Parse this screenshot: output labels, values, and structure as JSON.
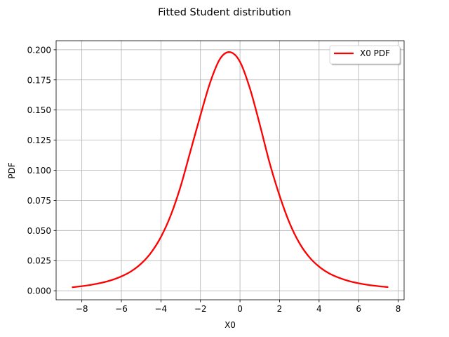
{
  "chart_data": {
    "type": "line",
    "title": "Fitted Student distribution",
    "xlabel": "X0",
    "ylabel": "PDF",
    "xlim": [
      -9.3,
      8.3
    ],
    "ylim": [
      -0.0075,
      0.2075
    ],
    "xticks": [
      -8,
      -6,
      -4,
      -2,
      0,
      2,
      4,
      6,
      8
    ],
    "xtick_labels": [
      "−8",
      "−6",
      "−4",
      "−2",
      "0",
      "2",
      "4",
      "6",
      "8"
    ],
    "yticks": [
      0.0,
      0.025,
      0.05,
      0.075,
      0.1,
      0.125,
      0.15,
      0.175,
      0.2
    ],
    "ytick_labels": [
      "0.000",
      "0.025",
      "0.050",
      "0.075",
      "0.100",
      "0.125",
      "0.150",
      "0.175",
      "0.200"
    ],
    "grid": true,
    "legend_position": "top-right",
    "series": [
      {
        "name": "X0 PDF",
        "color": "#ff0000",
        "x": [
          -8.5,
          -8.0,
          -7.5,
          -7.0,
          -6.5,
          -6.0,
          -5.5,
          -5.0,
          -4.5,
          -4.0,
          -3.5,
          -3.0,
          -2.5,
          -2.0,
          -1.5,
          -1.0,
          -0.5,
          0.0,
          0.5,
          1.0,
          1.5,
          2.0,
          2.5,
          3.0,
          3.5,
          4.0,
          4.5,
          5.0,
          5.5,
          6.0,
          6.5,
          7.0,
          7.5
        ],
        "y": [
          0.0029,
          0.0038,
          0.005,
          0.0066,
          0.0088,
          0.0119,
          0.0162,
          0.0225,
          0.0316,
          0.0446,
          0.0627,
          0.0868,
          0.1162,
          0.1456,
          0.1733,
          0.1927,
          0.198,
          0.19,
          0.168,
          0.138,
          0.106,
          0.079,
          0.0565,
          0.0397,
          0.028,
          0.02,
          0.0145,
          0.0108,
          0.0081,
          0.0062,
          0.0048,
          0.0038,
          0.003
        ]
      }
    ]
  }
}
